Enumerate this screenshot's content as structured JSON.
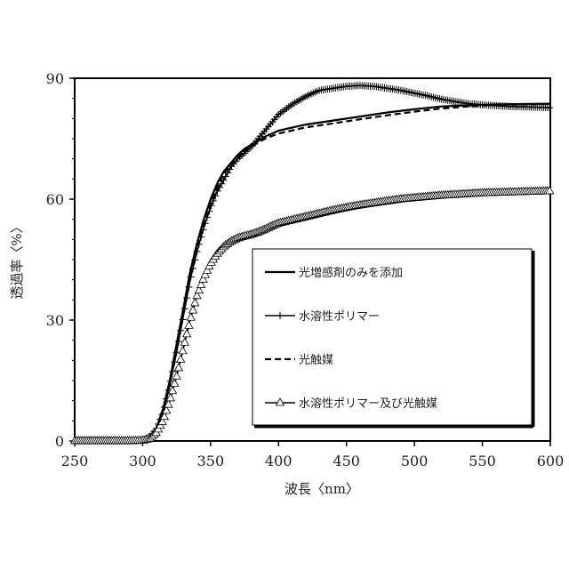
{
  "chart_data": {
    "type": "line",
    "xlabel": "波長〈nm〉",
    "ylabel": "透過率〈%〉",
    "xlim": [
      250,
      600
    ],
    "ylim": [
      0,
      90
    ],
    "x_ticks": [
      250,
      300,
      350,
      400,
      450,
      500,
      550,
      600
    ],
    "y_ticks": [
      0,
      30,
      60,
      90
    ],
    "grid": false,
    "legend_position": "inside-right",
    "series": [
      {
        "name": "光増感剤のみを添加",
        "style": "solid",
        "marker": "none",
        "color": "#000000",
        "x": [
          250,
          290,
          298,
          305,
          310,
          315,
          320,
          325,
          330,
          335,
          340,
          345,
          350,
          355,
          360,
          365,
          370,
          375,
          380,
          385,
          390,
          400,
          420,
          440,
          460,
          480,
          500,
          520,
          540,
          560,
          580,
          600
        ],
        "y": [
          0,
          0,
          0.1,
          1,
          3,
          8,
          15,
          24,
          33,
          42,
          49,
          55,
          60,
          64,
          67,
          69,
          71,
          72.5,
          73.5,
          74.5,
          75.5,
          77,
          78.5,
          79.5,
          80.5,
          81.5,
          82.3,
          83,
          83.3,
          83.5,
          83.6,
          83.7
        ]
      },
      {
        "name": "水溶性ポリマー",
        "style": "solid",
        "marker": "plus",
        "color": "#000000",
        "x": [
          250,
          290,
          298,
          305,
          310,
          315,
          320,
          325,
          330,
          335,
          340,
          345,
          350,
          355,
          360,
          365,
          370,
          375,
          380,
          385,
          390,
          395,
          400,
          410,
          420,
          430,
          440,
          450,
          460,
          470,
          480,
          490,
          500,
          510,
          520,
          530,
          540,
          550,
          560,
          570,
          580,
          590,
          600
        ],
        "y": [
          0,
          0,
          0.1,
          1,
          3,
          7,
          14,
          22,
          31,
          40,
          47,
          53,
          58,
          62,
          65,
          68,
          70,
          71.5,
          73,
          75,
          77,
          79,
          81,
          83.5,
          85.5,
          87,
          87.5,
          88,
          88.2,
          88,
          87.5,
          87,
          86.3,
          85.6,
          84.8,
          84.2,
          83.7,
          83.4,
          83.2,
          83,
          82.9,
          82.8,
          82.7
        ]
      },
      {
        "name": "光触媒",
        "style": "dashed",
        "marker": "none",
        "color": "#000000",
        "x": [
          250,
          290,
          298,
          305,
          310,
          315,
          320,
          325,
          330,
          335,
          340,
          345,
          350,
          355,
          360,
          365,
          370,
          375,
          380,
          385,
          390,
          400,
          420,
          440,
          460,
          480,
          500,
          520,
          540,
          560,
          580,
          600
        ],
        "y": [
          0,
          0,
          0.1,
          1,
          3,
          7,
          14,
          23,
          32,
          41,
          48,
          54,
          59,
          63,
          66.5,
          68.5,
          70.5,
          72,
          73,
          74,
          75,
          76.3,
          77.8,
          78.8,
          79.8,
          80.8,
          81.7,
          82.5,
          83,
          83.4,
          83.5,
          83.6
        ]
      },
      {
        "name": "水溶性ポリマー及び光触媒",
        "style": "solid",
        "marker": "triangle",
        "color": "#000000",
        "x": [
          250,
          290,
          300,
          305,
          310,
          315,
          320,
          325,
          330,
          335,
          340,
          345,
          350,
          355,
          360,
          365,
          370,
          375,
          380,
          385,
          390,
          395,
          400,
          410,
          420,
          430,
          440,
          450,
          460,
          470,
          480,
          490,
          500,
          510,
          520,
          530,
          540,
          550,
          560,
          570,
          580,
          590,
          600
        ],
        "y": [
          0,
          0,
          0.1,
          0.5,
          2,
          5,
          10,
          16,
          23,
          30,
          36,
          40.5,
          44,
          46.5,
          48.3,
          49.5,
          50.3,
          50.8,
          51.2,
          51.8,
          52.5,
          53.3,
          54,
          54.8,
          55.6,
          56.4,
          57.2,
          57.9,
          58.5,
          59,
          59.5,
          60,
          60.3,
          60.6,
          60.9,
          61.1,
          61.3,
          61.5,
          61.6,
          61.7,
          61.8,
          61.9,
          62
        ]
      }
    ]
  }
}
